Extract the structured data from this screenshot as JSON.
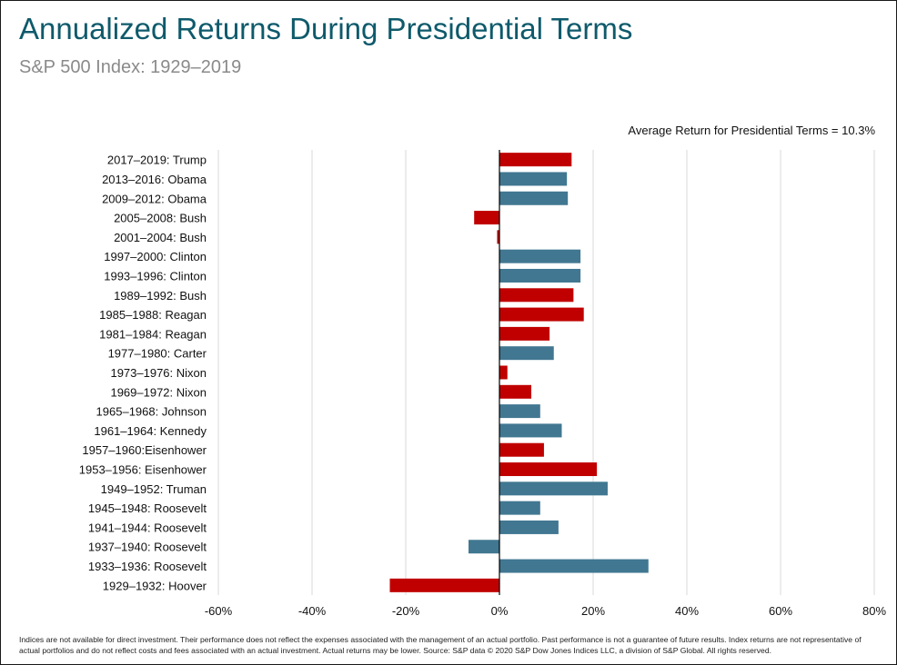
{
  "title": "Annualized Returns During Presidential Terms",
  "subtitle": "S&P 500 Index: 1929–2019",
  "average_note": "Average Return for Presidential Terms = 10.3%",
  "footnote": "Indices are not available for direct investment. Their performance does not reflect the expenses associated with the management of an actual portfolio. Past performance is not a guarantee of future results. Index returns are not representative of actual portfolios and do not reflect costs and fees associated with an actual investment. Actual returns may be lower. Source: S&P data © 2020 S&P Dow Jones Indices LLC, a division of S&P Global. All rights reserved.",
  "colors": {
    "republican": "#c00000",
    "democrat": "#417791",
    "grid": "#d9d9d9",
    "axis": "#000000"
  },
  "chart_data": {
    "type": "bar",
    "orientation": "horizontal",
    "xlim": [
      -60,
      80
    ],
    "x_ticks": [
      -60,
      -40,
      -20,
      0,
      20,
      40,
      60,
      80
    ],
    "x_tick_labels": [
      "-60%",
      "-40%",
      "-20%",
      "0%",
      "20%",
      "40%",
      "60%",
      "80%"
    ],
    "grid": true,
    "categories": [
      "2017–2019: Trump",
      "2013–2016: Obama",
      "2009–2012: Obama",
      "2005–2008: Bush",
      "2001–2004: Bush",
      "1997–2000: Clinton",
      "1993–1996: Clinton",
      "1989–1992: Bush",
      "1985–1988: Reagan",
      "1981–1984: Reagan",
      "1977–1980: Carter",
      "1973–1976: Nixon",
      "1969–1972: Nixon",
      "1965–1968: Johnson",
      "1961–1964: Kennedy",
      "1957–1960:Eisenhower",
      "1953–1956: Eisenhower",
      "1949–1952: Truman",
      "1945–1948: Roosevelt",
      "1941–1944: Roosevelt",
      "1937–1940: Roosevelt",
      "1933–1936: Roosevelt",
      "1929–1932: Hoover"
    ],
    "values": [
      15.4,
      14.4,
      14.6,
      -5.4,
      -0.5,
      17.3,
      17.3,
      15.8,
      18.0,
      10.7,
      11.6,
      1.7,
      6.8,
      8.7,
      13.3,
      9.5,
      20.8,
      23.1,
      8.7,
      12.6,
      -6.6,
      31.8,
      -23.4
    ],
    "parties": [
      "R",
      "D",
      "D",
      "R",
      "R",
      "D",
      "D",
      "R",
      "R",
      "R",
      "D",
      "R",
      "R",
      "D",
      "D",
      "R",
      "R",
      "D",
      "D",
      "D",
      "D",
      "D",
      "R"
    ]
  }
}
